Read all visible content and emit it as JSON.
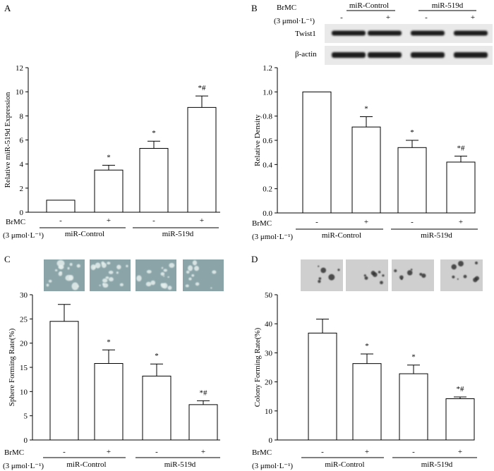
{
  "colors": {
    "axis": "#000000",
    "bar_fill": "#ffffff",
    "blot_band": "#1c1c1c",
    "sphere_bg": "#8aa4a8",
    "colony_bg": "#cfcfcf"
  },
  "shared": {
    "brmc_label": "BrMC",
    "dose_label": "(3 μmol·L⁻¹)",
    "groups": [
      "miR-Control",
      "miR-519d"
    ],
    "signs": [
      "-",
      "+",
      "-",
      "+"
    ],
    "top_dose_label": "(3 μmol·L⁻¹)"
  },
  "blot": {
    "rows": [
      "Twist1",
      "β-actin"
    ]
  },
  "chart_data": [
    {
      "id": "A",
      "letter": "A",
      "type": "bar",
      "ylabel": "Relative miR-519d Expression",
      "ylim": [
        0,
        12
      ],
      "yticks": [
        "0",
        "2",
        "4",
        "6",
        "8",
        "10",
        "12"
      ],
      "categories": [
        "miR-Control -",
        "miR-Control +",
        "miR-519d -",
        "miR-519d +"
      ],
      "values": [
        1.0,
        3.5,
        5.3,
        8.7
      ],
      "errors": [
        0,
        0.4,
        0.6,
        0.95
      ],
      "annotations": [
        "",
        "*",
        "*",
        "*#"
      ]
    },
    {
      "id": "B",
      "letter": "B",
      "type": "bar",
      "ylabel": "Relative Density",
      "ylim": [
        0,
        1.2
      ],
      "yticks": [
        "0.0",
        "0.2",
        "0.4",
        "0.6",
        "0.8",
        "1.0",
        "1.2"
      ],
      "categories": [
        "miR-Control -",
        "miR-Control +",
        "miR-519d -",
        "miR-519d +"
      ],
      "values": [
        1.0,
        0.71,
        0.54,
        0.42
      ],
      "errors": [
        0,
        0.085,
        0.06,
        0.05
      ],
      "annotations": [
        "",
        "*",
        "*",
        "*#"
      ]
    },
    {
      "id": "C",
      "letter": "C",
      "type": "bar",
      "ylabel": "Sphere Forming Rate(%)",
      "ylim": [
        0,
        30
      ],
      "yticks": [
        "0",
        "5",
        "10",
        "15",
        "20",
        "25",
        "30"
      ],
      "categories": [
        "miR-Control -",
        "miR-Control +",
        "miR-519d -",
        "miR-519d +"
      ],
      "values": [
        24.5,
        15.8,
        13.2,
        7.3
      ],
      "errors": [
        3.5,
        2.8,
        2.5,
        0.8
      ],
      "annotations": [
        "",
        "*",
        "*",
        "*#"
      ]
    },
    {
      "id": "D",
      "letter": "D",
      "type": "bar",
      "ylabel": "Colony Forming Rate(%)",
      "ylim": [
        0,
        50
      ],
      "yticks": [
        "0",
        "10",
        "20",
        "30",
        "40",
        "50"
      ],
      "categories": [
        "miR-Control -",
        "miR-Control +",
        "miR-519d -",
        "miR-519d +"
      ],
      "values": [
        36.8,
        26.3,
        22.8,
        14.2
      ],
      "errors": [
        4.8,
        3.3,
        3.0,
        0.6
      ],
      "annotations": [
        "",
        "*",
        "*",
        "*#"
      ]
    }
  ]
}
